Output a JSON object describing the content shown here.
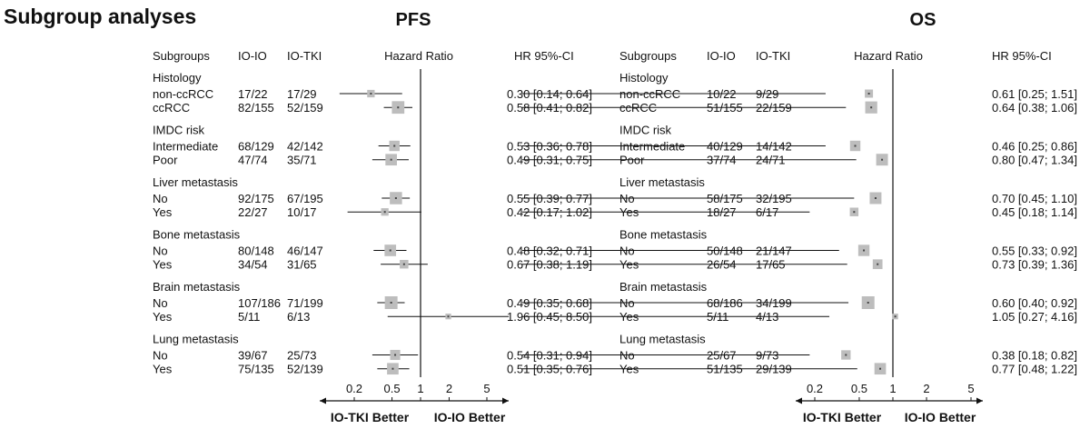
{
  "title": "Subgroup analyses",
  "arrow_labels": {
    "left": "IO-TKI Better",
    "right": "IO-IO Better"
  },
  "chart_data": [
    {
      "type": "forest",
      "title": "PFS",
      "columns": {
        "subgroups": "Subgroups",
        "ioio": "IO-IO",
        "iotki": "IO-TKI",
        "hr_axis": "Hazard Ratio",
        "hr_ci": "HR   95%-CI"
      },
      "x_scale": "log",
      "xlim": [
        0.13,
        8.5
      ],
      "ticks": [
        0.2,
        0.5,
        1,
        2,
        5
      ],
      "tick_labels": [
        "0.2",
        "0.5",
        "1",
        "2",
        "5"
      ],
      "reference": 1,
      "groups": [
        {
          "label": "Histology",
          "rows": [
            {
              "label": "non-ccRCC",
              "ioio": "17/22",
              "iotki": "17/29",
              "hr": 0.3,
              "lo": 0.14,
              "hi": 0.64,
              "hr_text": "0.30 [0.14; 0.64]",
              "weight": 0.18
            },
            {
              "label": "ccRCC",
              "ioio": "82/155",
              "iotki": "52/159",
              "hr": 0.58,
              "lo": 0.41,
              "hi": 0.82,
              "hr_text": "0.58 [0.41; 0.82]",
              "weight": 0.95
            }
          ]
        },
        {
          "label": "IMDC risk",
          "rows": [
            {
              "label": "Intermediate",
              "ioio": "68/129",
              "iotki": "42/142",
              "hr": 0.53,
              "lo": 0.36,
              "hi": 0.78,
              "hr_text": "0.53 [0.36; 0.78]",
              "weight": 0.55
            },
            {
              "label": "Poor",
              "ioio": "47/74",
              "iotki": "35/71",
              "hr": 0.49,
              "lo": 0.31,
              "hi": 0.75,
              "hr_text": "0.49 [0.31; 0.75]",
              "weight": 0.75
            }
          ]
        },
        {
          "label": "Liver metastasis",
          "rows": [
            {
              "label": "No",
              "ioio": "92/175",
              "iotki": "67/195",
              "hr": 0.55,
              "lo": 0.39,
              "hi": 0.77,
              "hr_text": "0.55 [0.39; 0.77]",
              "weight": 0.9
            },
            {
              "label": "Yes",
              "ioio": "22/27",
              "iotki": "10/17",
              "hr": 0.42,
              "lo": 0.17,
              "hi": 1.02,
              "hr_text": "0.42 [0.17; 1.02]",
              "weight": 0.18
            }
          ]
        },
        {
          "label": "Bone metastasis",
          "rows": [
            {
              "label": "No",
              "ioio": "80/148",
              "iotki": "46/147",
              "hr": 0.48,
              "lo": 0.32,
              "hi": 0.71,
              "hr_text": "0.48 [0.32; 0.71]",
              "weight": 0.75
            },
            {
              "label": "Yes",
              "ioio": "34/54",
              "iotki": "31/65",
              "hr": 0.67,
              "lo": 0.38,
              "hi": 1.19,
              "hr_text": "0.67 [0.38; 1.19]",
              "weight": 0.3
            }
          ]
        },
        {
          "label": "Brain metastasis",
          "rows": [
            {
              "label": "No",
              "ioio": "107/186",
              "iotki": "71/199",
              "hr": 0.49,
              "lo": 0.35,
              "hi": 0.68,
              "hr_text": "0.49 [0.35; 0.68]",
              "weight": 1.0
            },
            {
              "label": "Yes",
              "ioio": "5/11",
              "iotki": "6/13",
              "hr": 1.96,
              "lo": 0.45,
              "hi": 8.5,
              "hr_text": "1.96 [0.45; 8.50]",
              "weight": 0.05
            }
          ]
        },
        {
          "label": "Lung metastasis",
          "rows": [
            {
              "label": "No",
              "ioio": "39/67",
              "iotki": "25/73",
              "hr": 0.54,
              "lo": 0.31,
              "hi": 0.94,
              "hr_text": "0.54 [0.31; 0.94]",
              "weight": 0.5
            },
            {
              "label": "Yes",
              "ioio": "75/135",
              "iotki": "52/139",
              "hr": 0.51,
              "lo": 0.35,
              "hi": 0.76,
              "hr_text": "0.51 [0.35; 0.76]",
              "weight": 0.75
            }
          ]
        }
      ]
    },
    {
      "type": "forest",
      "title": "OS",
      "columns": {
        "subgroups": "Subgroups",
        "ioio": "IO-IO",
        "iotki": "IO-TKI",
        "hr_axis": "Hazard Ratio",
        "hr_ci": "HR   95%-CI"
      },
      "x_scale": "log",
      "xlim": [
        0.16,
        6.0
      ],
      "ticks": [
        0.2,
        0.5,
        1,
        2,
        5
      ],
      "tick_labels": [
        "0.2",
        "0.5",
        "1",
        "2",
        "5"
      ],
      "reference": 1,
      "groups": [
        {
          "label": "Histology",
          "rows": [
            {
              "label": "non-ccRCC",
              "ioio": "10/22",
              "iotki": "9/29",
              "hr": 0.61,
              "lo": 0.25,
              "hi": 1.51,
              "hr_text": "0.61 [0.25; 1.51]",
              "weight": 0.25
            },
            {
              "label": "ccRCC",
              "ioio": "51/155",
              "iotki": "22/159",
              "hr": 0.64,
              "lo": 0.38,
              "hi": 1.06,
              "hr_text": "0.64 [0.38; 1.06]",
              "weight": 0.85
            }
          ]
        },
        {
          "label": "IMDC risk",
          "rows": [
            {
              "label": "Intermediate",
              "ioio": "40/129",
              "iotki": "14/142",
              "hr": 0.46,
              "lo": 0.25,
              "hi": 0.86,
              "hr_text": "0.46 [0.25; 0.86]",
              "weight": 0.55
            },
            {
              "label": "Poor",
              "ioio": "37/74",
              "iotki": "24/71",
              "hr": 0.8,
              "lo": 0.47,
              "hi": 1.34,
              "hr_text": "0.80 [0.47; 1.34]",
              "weight": 0.8
            }
          ]
        },
        {
          "label": "Liver metastasis",
          "rows": [
            {
              "label": "No",
              "ioio": "58/175",
              "iotki": "32/195",
              "hr": 0.7,
              "lo": 0.45,
              "hi": 1.1,
              "hr_text": "0.70 [0.45; 1.10]",
              "weight": 0.8
            },
            {
              "label": "Yes",
              "ioio": "18/27",
              "iotki": "6/17",
              "hr": 0.45,
              "lo": 0.18,
              "hi": 1.14,
              "hr_text": "0.45 [0.18; 1.14]",
              "weight": 0.3
            }
          ]
        },
        {
          "label": "Bone metastasis",
          "rows": [
            {
              "label": "No",
              "ioio": "50/148",
              "iotki": "21/147",
              "hr": 0.55,
              "lo": 0.33,
              "hi": 0.92,
              "hr_text": "0.55 [0.33; 0.92]",
              "weight": 0.7
            },
            {
              "label": "Yes",
              "ioio": "26/54",
              "iotki": "17/65",
              "hr": 0.73,
              "lo": 0.39,
              "hi": 1.36,
              "hr_text": "0.73 [0.39; 1.36]",
              "weight": 0.45
            }
          ]
        },
        {
          "label": "Brain metastasis",
          "rows": [
            {
              "label": "No",
              "ioio": "68/186",
              "iotki": "34/199",
              "hr": 0.6,
              "lo": 0.4,
              "hi": 0.92,
              "hr_text": "0.60 [0.40; 0.92]",
              "weight": 1.0
            },
            {
              "label": "Yes",
              "ioio": "5/11",
              "iotki": "4/13",
              "hr": 1.05,
              "lo": 0.27,
              "hi": 4.16,
              "hr_text": "1.05 [0.27; 4.16]",
              "weight": 0.05
            }
          ]
        },
        {
          "label": "Lung metastasis",
          "rows": [
            {
              "label": "No",
              "ioio": "25/67",
              "iotki": "9/73",
              "hr": 0.38,
              "lo": 0.18,
              "hi": 0.82,
              "hr_text": "0.38 [0.18; 0.82]",
              "weight": 0.4
            },
            {
              "label": "Yes",
              "ioio": "51/135",
              "iotki": "29/139",
              "hr": 0.77,
              "lo": 0.48,
              "hi": 1.22,
              "hr_text": "0.77 [0.48; 1.22]",
              "weight": 0.75
            }
          ]
        }
      ]
    }
  ]
}
